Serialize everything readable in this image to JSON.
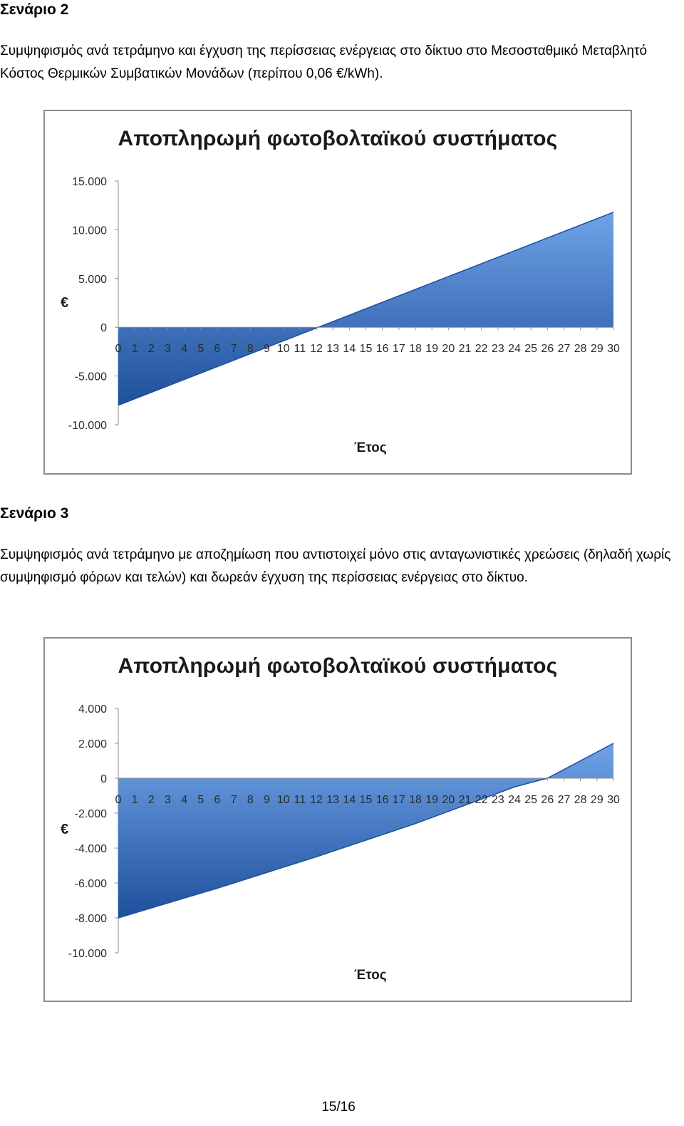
{
  "sections": [
    {
      "heading": "Σενάριο 2",
      "paragraph": "Συμψηφισμός ανά τετράμηνο και έγχυση της περίσσειας ενέργειας στο δίκτυο στο Μεσοσταθμικό Μεταβλητό Κόστος Θερμικών Συμβατικών Μονάδων (περίπου 0,06 €/kWh)."
    },
    {
      "heading": "Σενάριο 3",
      "paragraph": "Συμψηφισμός ανά τετράμηνο με αποζημίωση που αντιστοιχεί μόνο στις ανταγωνιστικές χρεώσεις (δηλαδή χωρίς συμψηφισμό φόρων και τελών) και δωρεάν έγχυση της περίσσειας ενέργειας στο δίκτυο."
    }
  ],
  "page_number": "15/16",
  "colors": {
    "area_fill_light": "#6fa3e6",
    "area_fill_dark": "#1e4f9c",
    "axis": "#8c8c8c"
  },
  "chart_data": [
    {
      "type": "area",
      "title": "Αποπληρωμή φωτοβολταϊκού συστήματος",
      "xlabel": "Έτος",
      "ylabel": "€",
      "x": [
        0,
        30
      ],
      "y": [
        -8000,
        11800
      ],
      "xlim": [
        0,
        30
      ],
      "ylim": [
        -10000,
        15000
      ],
      "x_ticks": [
        "0",
        "1",
        "2",
        "3",
        "4",
        "5",
        "6",
        "7",
        "8",
        "9",
        "10",
        "11",
        "12",
        "13",
        "14",
        "15",
        "16",
        "17",
        "18",
        "19",
        "20",
        "21",
        "22",
        "23",
        "24",
        "25",
        "26",
        "27",
        "28",
        "29",
        "30"
      ],
      "y_ticks": [
        {
          "value": 15000,
          "label": "15.000"
        },
        {
          "value": 10000,
          "label": "10.000"
        },
        {
          "value": 5000,
          "label": "5.000"
        },
        {
          "value": 0,
          "label": "0"
        },
        {
          "value": -5000,
          "label": "-5.000"
        },
        {
          "value": -10000,
          "label": "-10.000"
        }
      ],
      "grid": false,
      "legend": "none"
    },
    {
      "type": "area",
      "title": "Αποπληρωμή φωτοβολταϊκού συστήματος",
      "xlabel": "Έτος",
      "ylabel": "€",
      "x": [
        0,
        6,
        12,
        18,
        24,
        26,
        30
      ],
      "y": [
        -8000,
        -6300,
        -4500,
        -2600,
        -500,
        0,
        2000
      ],
      "xlim": [
        0,
        30
      ],
      "ylim": [
        -10000,
        4000
      ],
      "x_ticks": [
        "0",
        "1",
        "2",
        "3",
        "4",
        "5",
        "6",
        "7",
        "8",
        "9",
        "10",
        "11",
        "12",
        "13",
        "14",
        "15",
        "16",
        "17",
        "18",
        "19",
        "20",
        "21",
        "22",
        "23",
        "24",
        "25",
        "26",
        "27",
        "28",
        "29",
        "30"
      ],
      "y_ticks": [
        {
          "value": 4000,
          "label": "4.000"
        },
        {
          "value": 2000,
          "label": "2.000"
        },
        {
          "value": 0,
          "label": "0"
        },
        {
          "value": -2000,
          "label": "-2.000"
        },
        {
          "value": -4000,
          "label": "-4.000"
        },
        {
          "value": -6000,
          "label": "-6.000"
        },
        {
          "value": -8000,
          "label": "-8.000"
        },
        {
          "value": -10000,
          "label": "-10.000"
        }
      ],
      "grid": false,
      "legend": "none"
    }
  ]
}
